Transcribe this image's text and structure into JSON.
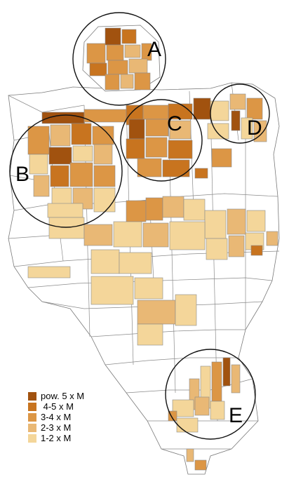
{
  "legend": {
    "items": [
      {
        "label": "pow. 5 x M",
        "color": "#a1520f"
      },
      {
        "label": " 4-5 x M",
        "color": "#c8741f"
      },
      {
        "label": "3-4 x M",
        "color": "#dc9645"
      },
      {
        "label": "2-3 x M",
        "color": "#e9b875"
      },
      {
        "label": "1-2 x M",
        "color": "#f4d69a"
      }
    ]
  },
  "zones": [
    {
      "label": "A"
    },
    {
      "label": "B"
    },
    {
      "label": "C"
    },
    {
      "label": "D"
    },
    {
      "label": "E"
    }
  ]
}
